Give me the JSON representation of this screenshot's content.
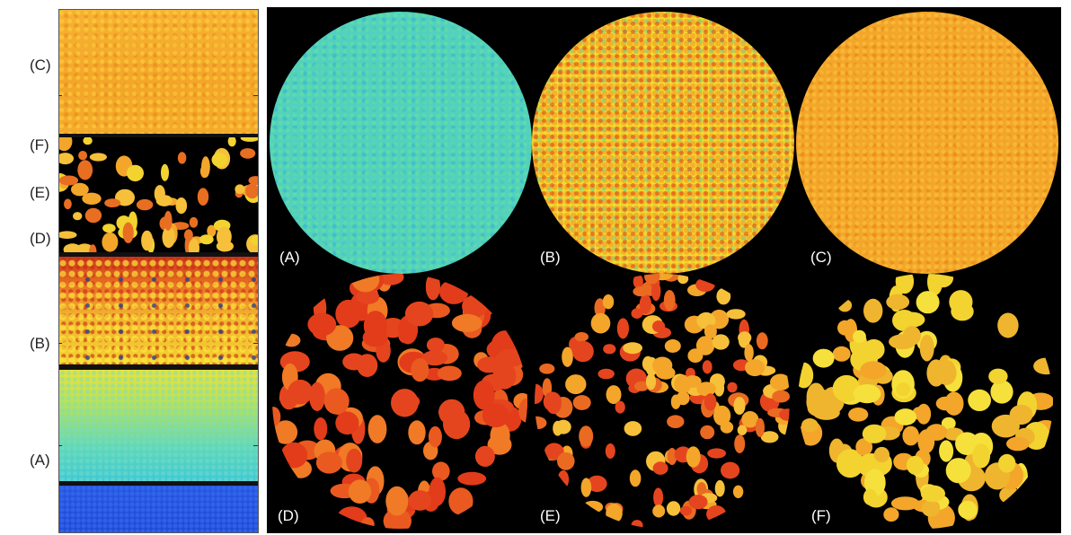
{
  "left_strip": {
    "labels": [
      "(C)",
      "(F)",
      "(E)",
      "(D)",
      "(B)",
      "(A)"
    ]
  },
  "panels": [
    {
      "label": "(A)",
      "pattern": "uniform-cyan"
    },
    {
      "label": "(B)",
      "pattern": "speckled-yellow"
    },
    {
      "label": "(C)",
      "pattern": "uniform-orange"
    },
    {
      "label": "(D)",
      "pattern": "red-porous"
    },
    {
      "label": "(E)",
      "pattern": "orange-porous"
    },
    {
      "label": "(F)",
      "pattern": "yellow-porous"
    }
  ],
  "colors": {
    "cyan": "#4ad4d0",
    "yellow": "#f2e12e",
    "orange": "#f3a62a",
    "red": "#e5451e",
    "blue": "#1f4fe0",
    "background": "#000000"
  }
}
